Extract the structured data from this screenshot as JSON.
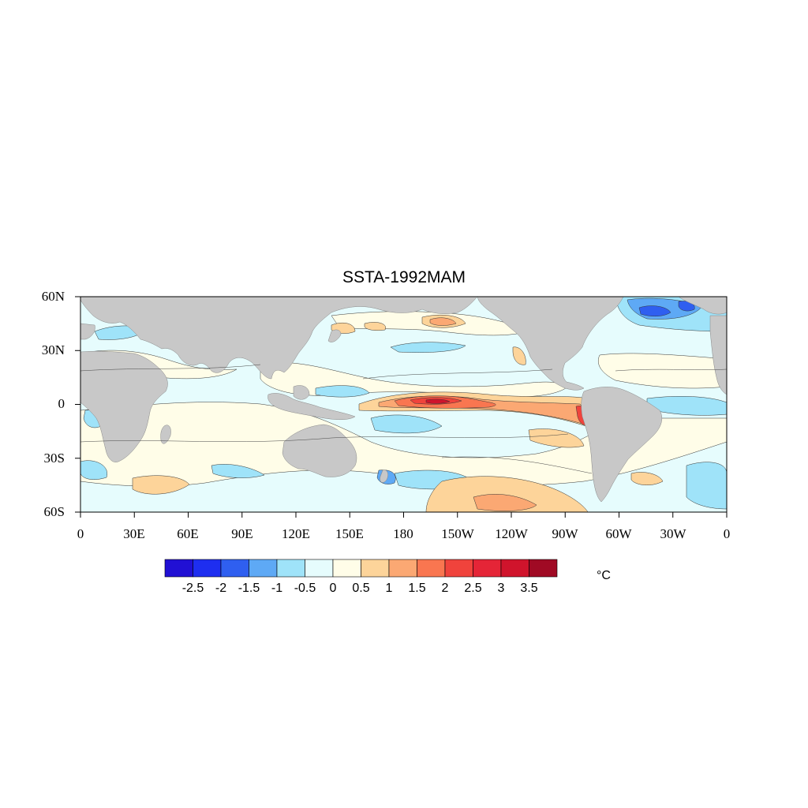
{
  "title": "SSTA-1992MAM",
  "unit_label": "°C",
  "x_axis_ticks": [
    "0",
    "30E",
    "60E",
    "90E",
    "120E",
    "150E",
    "180",
    "150W",
    "120W",
    "90W",
    "60W",
    "30W",
    "0"
  ],
  "y_axis_ticks": [
    "60N",
    "30N",
    "0",
    "30S",
    "60S"
  ],
  "colorbar": {
    "labels": [
      "-2.5",
      "-2",
      "-1.5",
      "-1",
      "-0.5",
      "0",
      "0.5",
      "1",
      "1.5",
      "2",
      "2.5",
      "3",
      "3.5"
    ],
    "colors": [
      "#2110d4",
      "#1e2ef0",
      "#2f5ff0",
      "#5ea9f5",
      "#9fe3f9",
      "#e6fcfd",
      "#fffde8",
      "#fdd49a",
      "#fba873",
      "#f97650",
      "#f0433c",
      "#e52537",
      "#d0142c",
      "#a00a24"
    ]
  },
  "colors": {
    "land": "#c8c8c8",
    "background": "#ffffff"
  }
}
